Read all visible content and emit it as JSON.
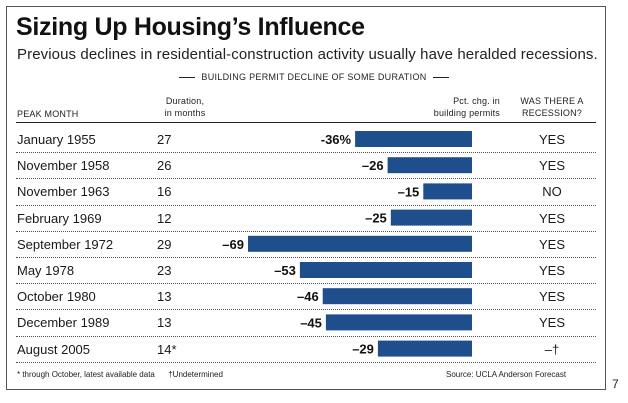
{
  "header": {
    "title": "Sizing Up Housing’s Influence",
    "subtitle": "Previous declines in residential-construction activity usually have heralded recessions.",
    "section_label": "BUILDING PERMIT DECLINE OF SOME DURATION"
  },
  "columns": {
    "peak_month": "PEAK MONTH",
    "duration_line1": "Duration,",
    "duration_line2": "in months",
    "pct_line1": "Pct. chg. in",
    "pct_line2": "building permits",
    "recession_line1": "WAS THERE A",
    "recession_line2": "RECESSION?"
  },
  "rows": [
    {
      "month": "January 1955",
      "duration": "27",
      "pct_label": "-36%",
      "recession": "YES"
    },
    {
      "month": "November 1958",
      "duration": "26",
      "pct_label": "–26",
      "recession": "YES"
    },
    {
      "month": "November 1963",
      "duration": "16",
      "pct_label": "–15",
      "recession": "NO"
    },
    {
      "month": "February 1969",
      "duration": "12",
      "pct_label": "–25",
      "recession": "YES"
    },
    {
      "month": "September 1972",
      "duration": "29",
      "pct_label": "–69",
      "recession": "YES"
    },
    {
      "month": "May 1978",
      "duration": "23",
      "pct_label": "–53",
      "recession": "YES"
    },
    {
      "month": "October 1980",
      "duration": "13",
      "pct_label": "–46",
      "recession": "YES"
    },
    {
      "month": "December 1989",
      "duration": "13",
      "pct_label": "–45",
      "recession": "YES"
    },
    {
      "month": "August 2005",
      "duration": "14*",
      "pct_label": "–29",
      "recession": "–†"
    }
  ],
  "footnotes": {
    "left": "* through October, latest available data",
    "dagger": "†Undetermined",
    "source": "Source: UCLA Anderson Forecast"
  },
  "page_number": "7",
  "colors": {
    "bar": "#1f4e8c",
    "text": "#1a1a1a"
  },
  "chart_data": {
    "type": "bar",
    "orientation": "horizontal",
    "categories": [
      "January 1955",
      "November 1958",
      "November 1963",
      "February 1969",
      "September 1972",
      "May 1978",
      "October 1980",
      "December 1989",
      "August 2005"
    ],
    "values": [
      -36,
      -26,
      -15,
      -25,
      -69,
      -53,
      -46,
      -45,
      -29
    ],
    "durations_months": [
      27,
      26,
      16,
      12,
      29,
      23,
      13,
      13,
      14
    ],
    "recession": [
      "YES",
      "YES",
      "NO",
      "YES",
      "YES",
      "YES",
      "YES",
      "YES",
      "–†"
    ],
    "title": "Sizing Up Housing’s Influence",
    "xlabel": "Pct. chg. in building permits",
    "xlim": [
      -69,
      0
    ],
    "grid": false
  }
}
